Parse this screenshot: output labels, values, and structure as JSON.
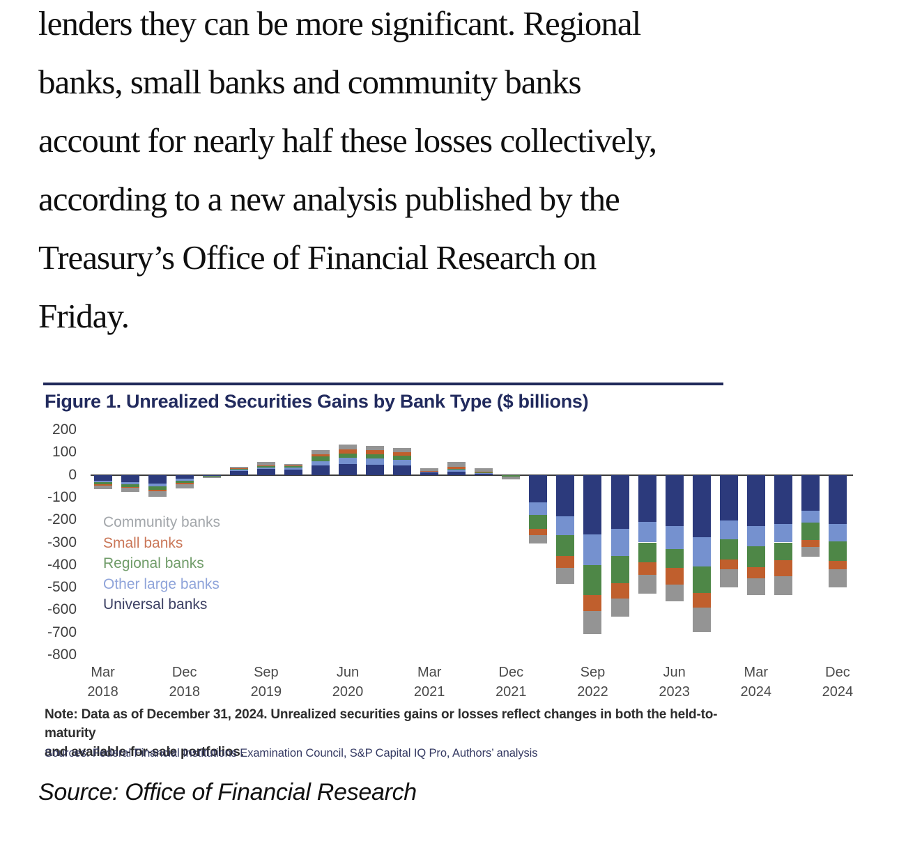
{
  "article": {
    "lines": [
      "lenders they can be more significant. Regional",
      "banks, small banks and community banks",
      "account for nearly half these losses collectively,",
      "according to a new analysis published by the",
      "Treasury’s Office of Financial Research on",
      "Friday."
    ],
    "source_caption": "Source: Office of Financial Research"
  },
  "figure": {
    "title": "Figure 1. Unrealized Securities Gains by Bank Type ($ billions)",
    "note_lines": [
      "Note: Data as of December 31, 2024. Unrealized securities gains or losses reflect changes in both the held-to-maturity",
      "and available-for-sale portfolios."
    ],
    "sources": "Sources: Federal Financial Institutions Examination Council, S&P Capital IQ Pro, Authors’ analysis"
  },
  "chart_data": {
    "type": "bar",
    "stacked": true,
    "title": "Figure 1. Unrealized Securities Gains by Bank Type ($ billions)",
    "ylabel": "$ billions",
    "ylim": [
      -800,
      200
    ],
    "yticks": [
      200,
      100,
      0,
      -100,
      -200,
      -300,
      -400,
      -500,
      -600,
      -700,
      -800
    ],
    "grid": false,
    "legend_position": "inside-left",
    "x": [
      "Mar 2018",
      "Jun 2018",
      "Sep 2018",
      "Dec 2018",
      "Mar 2019",
      "Jun 2019",
      "Sep 2019",
      "Dec 2019",
      "Mar 2020",
      "Jun 2020",
      "Sep 2020",
      "Dec 2020",
      "Mar 2021",
      "Jun 2021",
      "Sep 2021",
      "Dec 2021",
      "Mar 2022",
      "Jun 2022",
      "Sep 2022",
      "Dec 2022",
      "Mar 2023",
      "Jun 2023",
      "Sep 2023",
      "Dec 2023",
      "Mar 2024",
      "Jun 2024",
      "Sep 2024",
      "Dec 2024"
    ],
    "x_tick_positions": [
      0,
      3,
      6,
      9,
      12,
      15,
      18,
      21,
      24,
      27
    ],
    "x_tick_labels": [
      {
        "month": "Mar",
        "year": "2018"
      },
      {
        "month": "Dec",
        "year": "2018"
      },
      {
        "month": "Sep",
        "year": "2019"
      },
      {
        "month": "Jun",
        "year": "2020"
      },
      {
        "month": "Mar",
        "year": "2021"
      },
      {
        "month": "Dec",
        "year": "2021"
      },
      {
        "month": "Sep",
        "year": "2022"
      },
      {
        "month": "Jun",
        "year": "2023"
      },
      {
        "month": "Mar",
        "year": "2024"
      },
      {
        "month": "Dec",
        "year": "2024"
      }
    ],
    "series": [
      {
        "name": "Universal banks",
        "color": "#2c3a7c",
        "values": [
          -25,
          -31,
          -38,
          -18,
          -4,
          18,
          26,
          24,
          41,
          47,
          45,
          42,
          10,
          15,
          6,
          0,
          -122,
          -184,
          -263,
          -240,
          -210,
          -227,
          -277,
          -202,
          -227,
          -217,
          -158,
          -217
        ]
      },
      {
        "name": "Other large banks",
        "color": "#7591cf",
        "values": [
          -8,
          -10,
          -13,
          -8,
          -1,
          6,
          8,
          10,
          21,
          28,
          27,
          25,
          4,
          7,
          4,
          0,
          -56,
          -85,
          -137,
          -120,
          -90,
          -101,
          -129,
          -85,
          -89,
          -83,
          -55,
          -79
        ]
      },
      {
        "name": "Regional banks",
        "color": "#4e8747",
        "values": [
          -10,
          -12,
          -14,
          -10,
          -2,
          3,
          5,
          4,
          19,
          21,
          20,
          19,
          2,
          6,
          2,
          -7,
          -62,
          -91,
          -134,
          -121,
          -89,
          -85,
          -119,
          -88,
          -93,
          -79,
          -76,
          -87
        ]
      },
      {
        "name": "Small banks",
        "color": "#c05f2d",
        "values": [
          -4,
          -5,
          -8,
          -4,
          -1,
          2,
          3,
          3,
          10,
          18,
          17,
          16,
          1,
          8,
          2,
          0,
          -27,
          -52,
          -72,
          -67,
          -56,
          -75,
          -64,
          -44,
          -49,
          -72,
          -31,
          -37
        ]
      },
      {
        "name": "Community banks",
        "color": "#949494",
        "values": [
          -15,
          -18,
          -24,
          -19,
          -6,
          8,
          15,
          8,
          18,
          20,
          20,
          19,
          14,
          21,
          17,
          -12,
          -38,
          -72,
          -100,
          -81,
          -83,
          -75,
          -109,
          -80,
          -75,
          -83,
          -44,
          -80
        ]
      }
    ],
    "legend": [
      {
        "label": "Community banks",
        "color": "#a3a7ab"
      },
      {
        "label": "Small banks",
        "color": "#ca7758"
      },
      {
        "label": "Regional banks",
        "color": "#709c69"
      },
      {
        "label": "Other large banks",
        "color": "#8fa4da"
      },
      {
        "label": "Universal banks",
        "color": "#3b3f63"
      }
    ]
  }
}
